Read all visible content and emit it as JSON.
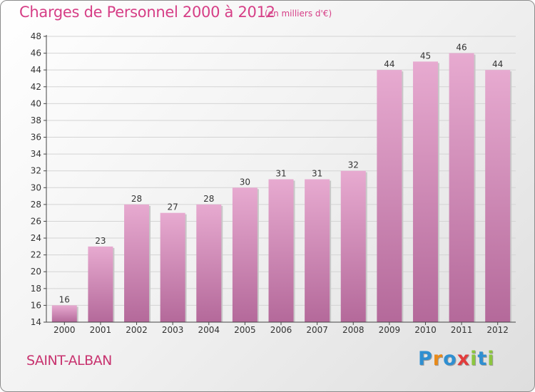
{
  "header": {
    "title": "Charges de Personnel 2000 à 2012",
    "subtitle": "(en milliers d'€)"
  },
  "footer": {
    "place": "SAINT-ALBAN",
    "logo_letters": [
      {
        "char": "P",
        "color": "#2f8fd1"
      },
      {
        "char": "r",
        "color": "#e88a1a"
      },
      {
        "char": "o",
        "color": "#2f8fd1"
      },
      {
        "char": "x",
        "color": "#e23c3c"
      },
      {
        "char": "i",
        "color": "#8cc63f"
      },
      {
        "char": "t",
        "color": "#2f8fd1"
      },
      {
        "char": "i",
        "color": "#8cc63f"
      }
    ]
  },
  "colors": {
    "title": "#d63e86",
    "bar_light": "#e7aad0",
    "bar_dark": "#b4699a",
    "grid": "#d4d4d4",
    "axis": "#444444"
  },
  "chart_data": {
    "type": "bar",
    "categories": [
      "2000",
      "2001",
      "2002",
      "2003",
      "2004",
      "2005",
      "2006",
      "2007",
      "2008",
      "2009",
      "2010",
      "2011",
      "2012"
    ],
    "values": [
      16,
      23,
      28,
      27,
      28,
      30,
      31,
      31,
      32,
      44,
      45,
      46,
      44
    ],
    "ylim": [
      14,
      48
    ],
    "yticks": [
      14,
      16,
      18,
      20,
      22,
      24,
      26,
      28,
      30,
      32,
      34,
      36,
      38,
      40,
      42,
      44,
      46,
      48
    ],
    "grid": true
  }
}
